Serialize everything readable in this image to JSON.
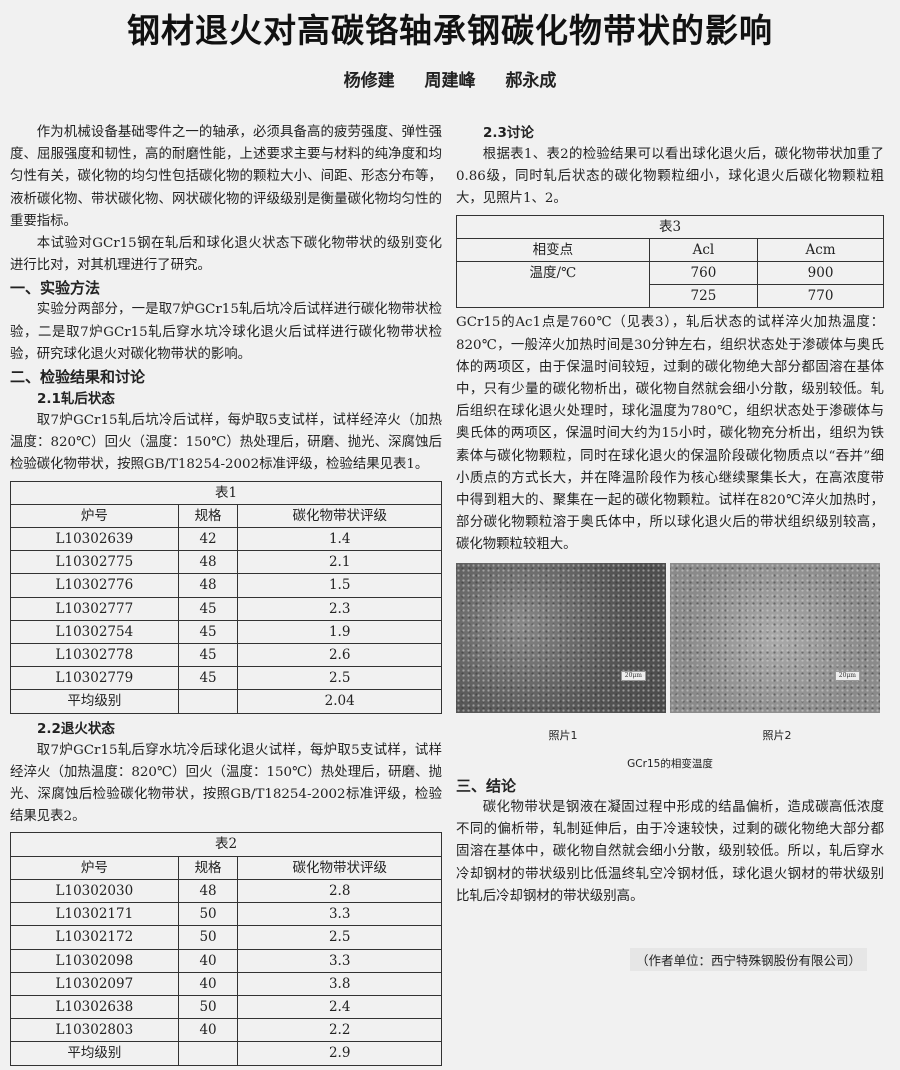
{
  "title": "钢材退火对高碳铬轴承钢碳化物带状的影响",
  "authors": [
    "杨修建",
    "周建峰",
    "郝永成"
  ],
  "intro": [
    "作为机械设备基础零件之一的轴承，必须具备高的疲劳强度、弹性强度、屈服强度和韧性，高的耐磨性能，上述要求主要与材料的纯净度和均匀性有关，碳化物的均匀性包括碳化物的颗粒大小、间距、形态分布等，液析碳化物、带状碳化物、网状碳化物的评级级别是衡量碳化物均匀性的重要指标。",
    "本试验对GCr15钢在轧后和球化退火状态下碳化物带状的级别变化进行比对，对其机理进行了研究。"
  ],
  "s1": {
    "heading": "一、实验方法",
    "text": "实验分两部分，一是取7炉GCr15轧后坑冷后试样进行碳化物带状检验，二是取7炉GCr15轧后穿水坑冷球化退火后试样进行碳化物带状检验，研究球化退火对碳化物带状的影响。"
  },
  "s2": {
    "heading": "二、检验结果和讨论",
    "s21": {
      "heading": "2.1轧后状态",
      "text": "取7炉GCr15轧后坑冷后试样，每炉取5支试样，试样经淬火（加热温度：820℃）回火（温度：150℃）热处理后，研磨、抛光、深腐蚀后检验碳化物带状，按照GB/T18254-2002标准评级，检验结果见表1。"
    },
    "s22": {
      "heading": "2.2退火状态",
      "text": "取7炉GCr15轧后穿水坑冷后球化退火试样，每炉取5支试样，试样经淬火（加热温度：820℃）回火（温度：150℃）热处理后，研磨、抛光、深腐蚀后检验碳化物带状，按照GB/T18254-2002标准评级，检验结果见表2。"
    },
    "s23": {
      "heading": "2.3讨论",
      "text1": "根据表1、表2的检验结果可以看出球化退火后，碳化物带状加重了0.86级，同时轧后状态的碳化物颗粒细小，球化退火后碳化物颗粒粗大，见照片1、2。",
      "text2": "GCr15的Ac1点是760℃（见表3），轧后状态的试样淬火加热温度：820℃，一般淬火加热时间是30分钟左右，组织状态处于渗碳体与奥氏体的两项区，由于保温时间较短，过剩的碳化物绝大部分都固溶在基体中，只有少量的碳化物析出，碳化物自然就会细小分散，级别较低。轧后组织在球化退火处理时，球化温度为780℃，组织状态处于渗碳体与奥氏体的两项区，保温时间大约为15小时，碳化物充分析出，组织为铁素体与碳化物颗粒，同时在球化退火的保温阶段碳化物质点以“吞并”细小质点的方式长大，并在降温阶段作为核心继续聚集长大，在高浓度带中得到粗大的、聚集在一起的碳化物颗粒。试样在820℃淬火加热时，部分碳化物颗粒溶于奥氏体中，所以球化退火后的带状组织级别较高，碳化物颗粒较粗大。"
    }
  },
  "table1": {
    "caption": "表1",
    "headers": [
      "炉号",
      "规格",
      "碳化物带状评级"
    ],
    "rows": [
      [
        "L10302639",
        "42",
        "1.4"
      ],
      [
        "L10302775",
        "48",
        "2.1"
      ],
      [
        "L10302776",
        "48",
        "1.5"
      ],
      [
        "L10302777",
        "45",
        "2.3"
      ],
      [
        "L10302754",
        "45",
        "1.9"
      ],
      [
        "L10302778",
        "45",
        "2.6"
      ],
      [
        "L10302779",
        "45",
        "2.5"
      ]
    ],
    "avg_label": "平均级别",
    "avg": "2.04"
  },
  "table2": {
    "caption": "表2",
    "headers": [
      "炉号",
      "规格",
      "碳化物带状评级"
    ],
    "rows": [
      [
        "L10302030",
        "48",
        "2.8"
      ],
      [
        "L10302171",
        "50",
        "3.3"
      ],
      [
        "L10302172",
        "50",
        "2.5"
      ],
      [
        "L10302098",
        "40",
        "3.3"
      ],
      [
        "L10302097",
        "40",
        "3.8"
      ],
      [
        "L10302638",
        "50",
        "2.4"
      ],
      [
        "L10302803",
        "40",
        "2.2"
      ]
    ],
    "avg_label": "平均级别",
    "avg": "2.9"
  },
  "table3": {
    "caption": "表3",
    "headers": [
      "相变点",
      "Acl",
      "Acm"
    ],
    "row_label": "温度/℃",
    "rows": [
      [
        "760",
        "900"
      ],
      [
        "725",
        "770"
      ]
    ]
  },
  "photos": {
    "scale": "20μm",
    "captions": [
      "照片1",
      "照片2"
    ],
    "figure_caption": "GCr15的相变温度"
  },
  "s3": {
    "heading": "三、结论",
    "text": "碳化物带状是钢液在凝固过程中形成的结晶偏析，造成碳高低浓度不同的偏析带，轧制延伸后，由于冷速较快，过剩的碳化物绝大部分都固溶在基体中，碳化物自然就会细小分散，级别较低。所以，轧后穿水冷却钢材的带状级别比低温终轧空冷钢材低，球化退火钢材的带状级别比轧后冷却钢材的带状级别高。"
  },
  "affiliation": "（作者单位：西宁特殊钢股份有限公司）"
}
